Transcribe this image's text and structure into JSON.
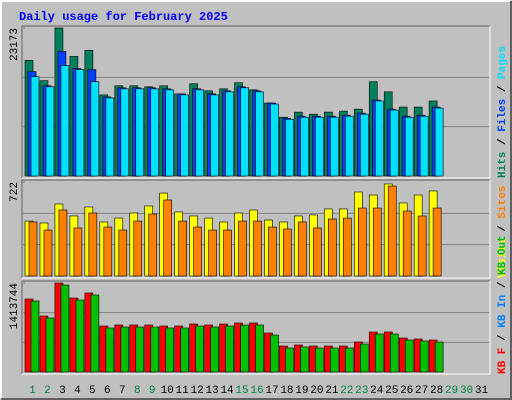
{
  "chart_data": {
    "type": "bar",
    "title": "Daily usage for February 2025",
    "categories": [
      "1",
      "2",
      "3",
      "4",
      "5",
      "6",
      "7",
      "8",
      "9",
      "10",
      "11",
      "12",
      "13",
      "14",
      "15",
      "16",
      "17",
      "18",
      "19",
      "20",
      "21",
      "22",
      "23",
      "24",
      "25",
      "26",
      "27",
      "28",
      "29",
      "30",
      "31"
    ],
    "category_colors": [
      "#008040",
      "#008040",
      "#000000",
      "#000000",
      "#000000",
      "#000000",
      "#000000",
      "#008040",
      "#008040",
      "#000000",
      "#000000",
      "#000000",
      "#000000",
      "#000000",
      "#008040",
      "#008040",
      "#000000",
      "#000000",
      "#000000",
      "#000000",
      "#000000",
      "#008040",
      "#008040",
      "#000000",
      "#000000",
      "#000000",
      "#000000",
      "#000000",
      "#008040",
      "#008040",
      "#000000"
    ],
    "legend_separator": " / ",
    "panels": [
      {
        "ylim": [
          0,
          23173
        ],
        "yticks": [
          23173
        ],
        "series": [
          {
            "name": "Hits",
            "color": "#00805c",
            "values": [
              18094,
              14919,
              23173,
              18729,
              19680,
              12697,
              14125,
              14125,
              13966,
              14125,
              12856,
              14443,
              13332,
              13649,
              14601,
              13490,
              11427,
              9205,
              9999,
              9681,
              9999,
              10158,
              10475,
              14760,
              13173,
              10792,
              10792,
              11744,
              null,
              null,
              null
            ]
          },
          {
            "name": "Files",
            "color": "#0040ff",
            "values": [
              16347,
              14126,
              19521,
              16824,
              16664,
              12380,
              13809,
              13809,
              13809,
              13650,
              12856,
              13650,
              12856,
              13332,
              13967,
              13332,
              11428,
              9047,
              9365,
              9365,
              9365,
              9523,
              9841,
              11904,
              10476,
              9365,
              9523,
              10793,
              null,
              null,
              null
            ]
          },
          {
            "name": "Pages",
            "color": "#00e0ff",
            "values": [
              15553,
              13966,
              17299,
              16664,
              14760,
              12220,
              13649,
              13649,
              13649,
              13490,
              12696,
              13490,
              12696,
              13172,
              13807,
              13172,
              11268,
              8887,
              9205,
              9205,
              9205,
              9363,
              9681,
              11744,
              10316,
              9205,
              9363,
              10633,
              null,
              null,
              null
            ]
          }
        ]
      },
      {
        "ylim": [
          0,
          722
        ],
        "yticks": [
          722
        ],
        "series": [
          {
            "name": "Visits",
            "color": "#ffff00",
            "values": [
              422,
              407,
              553,
              461,
              530,
              415,
              445,
              484,
              538,
              637,
              492,
              461,
              445,
              415,
              484,
              507,
              430,
              415,
              461,
              469,
              515,
              515,
              645,
              622,
              707,
              561,
              622,
              653,
              null,
              null,
              null
            ]
          },
          {
            "name": "Sites",
            "color": "#ff8000",
            "values": [
              415,
              353,
              507,
              369,
              484,
              376,
              353,
              422,
              476,
              584,
              422,
              376,
              353,
              353,
              422,
              422,
              376,
              361,
              415,
              369,
              438,
              445,
              522,
              522,
              691,
              499,
              461,
              522,
              null,
              null,
              null
            ]
          }
        ]
      },
      {
        "ylim": [
          0,
          1413744
        ],
        "yticks": [
          1413744
        ],
        "series": [
          {
            "name": "KB F",
            "color": "#ff0000",
            "values": [
              1159605,
              889560,
              1413744,
              1175490,
              1254915,
              730710,
              746595,
              746595,
              746595,
              730710,
              730710,
              762480,
              746595,
              762480,
              778365,
              778365,
              619515,
              413010,
              428895,
              413010,
              413010,
              413010,
              476550,
              635400,
              635400,
              540090,
              524205,
              508320,
              null,
              null,
              null
            ]
          },
          {
            "name": "KB In",
            "color": "#0080ff",
            "values": [
              null,
              null,
              null,
              null,
              null,
              null,
              null,
              null,
              null,
              null,
              null,
              null,
              null,
              null,
              null,
              null,
              null,
              null,
              null,
              null,
              null,
              null,
              null,
              null,
              null,
              null,
              null,
              null,
              null,
              null,
              null
            ]
          },
          {
            "name": "KB Out",
            "color": "#00c000",
            "values": [
              1127835,
              857790,
              1381974,
              1143720,
              1223145,
              698940,
              714825,
              714825,
              714825,
              698940,
              698940,
              730710,
              714825,
              730710,
              746595,
              746595,
              587745,
              381240,
              397125,
              381240,
              381240,
              381240,
              444780,
              603630,
              603630,
              508320,
              492435,
              476550,
              null,
              null,
              null
            ]
          }
        ]
      }
    ]
  }
}
